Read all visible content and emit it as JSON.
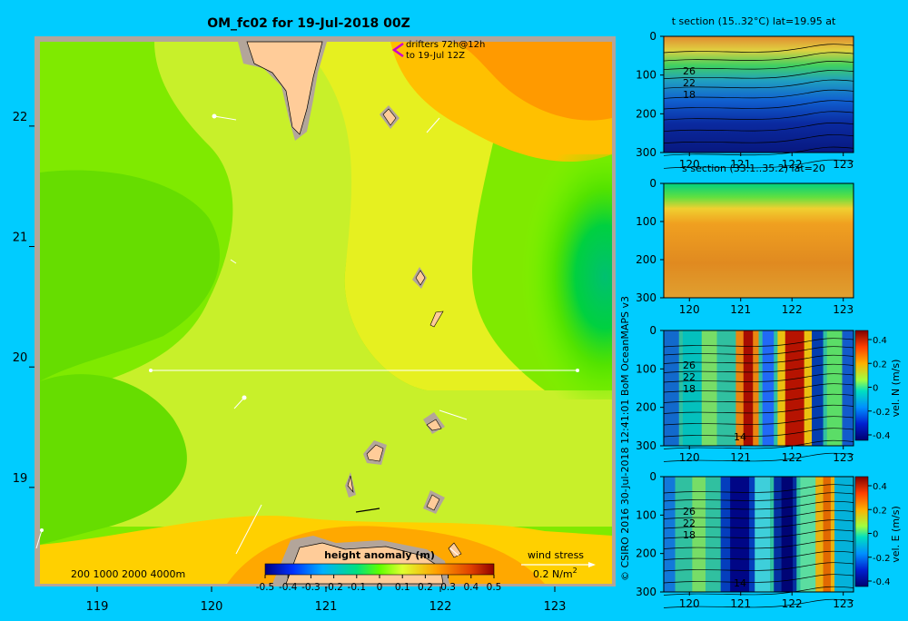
{
  "page": {
    "title": "OM_fc02 for 19-Jul-2018 00Z",
    "credit": "© CSIRO 2016   30-Jul-2018 12:41:01 BoM OceanMAPS v3",
    "colors": {
      "background": "#00ccff",
      "land": "#ffcc99",
      "land_shadow": "#b3a59a"
    }
  },
  "map": {
    "drifters_label_1": "drifters 72h@12h",
    "drifters_label_2": "to 19-Jul 12Z",
    "depth_legend": "200  1000  2000  4000m",
    "colorbar_title": "height anomaly  (m)",
    "colorbar_ticks": [
      "-0.5",
      "-0.4",
      "-0.3",
      "-0.2",
      "-0.1",
      "0",
      "0.1",
      "0.2",
      "0.3",
      "0.4",
      "0.5"
    ],
    "wind_label": "wind stress",
    "wind_scale": "0.2 N/m",
    "wind_scale_exp": "2",
    "x_ticks": [
      "119",
      "120",
      "121",
      "122",
      "123"
    ],
    "y_ticks": [
      "22",
      "21",
      "20",
      "19"
    ]
  },
  "panels": [
    {
      "id": "t",
      "title": "t section (15..32°C) lat=19.95 at",
      "y_ticks": [
        "0",
        "100",
        "200",
        "300"
      ],
      "x_ticks": [
        "120",
        "121",
        "122",
        "123"
      ],
      "contour_labels": [
        "26",
        "22",
        "18"
      ]
    },
    {
      "id": "s",
      "title": "s section (33.1..35.2) lat=20",
      "y_ticks": [
        "0",
        "100",
        "200",
        "300"
      ],
      "x_ticks": [
        "120",
        "121",
        "122",
        "123"
      ],
      "contour_labels": []
    },
    {
      "id": "n",
      "title": "",
      "y_ticks": [
        "0",
        "100",
        "200",
        "300"
      ],
      "x_ticks": [
        "120",
        "121",
        "122",
        "123"
      ],
      "contour_labels": [
        "26",
        "22",
        "18",
        "14"
      ],
      "cbar_label": "vel. N (m/s)",
      "cbar_ticks": [
        "0.4",
        "0.2",
        "0",
        "-0.2",
        "-0.4"
      ]
    },
    {
      "id": "e",
      "title": "",
      "y_ticks": [
        "0",
        "100",
        "200",
        "300"
      ],
      "x_ticks": [
        "120",
        "121",
        "122",
        "123"
      ],
      "contour_labels": [
        "26",
        "22",
        "18",
        "14"
      ],
      "cbar_label": "vel. E (m/s)",
      "cbar_ticks": [
        "0.4",
        "0.2",
        "0",
        "-0.2",
        "-0.4"
      ]
    }
  ],
  "chart_data": [
    {
      "type": "heatmap",
      "title": "OM_fc02 for 19-Jul-2018 00Z",
      "variable": "height anomaly (m)",
      "xlim": [
        118.5,
        123.5
      ],
      "ylim": [
        18.2,
        22.7
      ],
      "clim": [
        -0.5,
        0.5
      ],
      "section_line": {
        "lat": 20,
        "lon": [
          119.5,
          123.1
        ]
      }
    },
    {
      "type": "heatmap",
      "title": "t section (15..32°C) lat=19.95 at",
      "xlim": [
        119.5,
        123.2
      ],
      "ylim": [
        300,
        0
      ],
      "clim": [
        15,
        32
      ]
    },
    {
      "type": "heatmap",
      "title": "s section (33.1..35.2) lat=20",
      "xlim": [
        119.5,
        123.2
      ],
      "ylim": [
        300,
        0
      ],
      "clim": [
        33.1,
        35.2
      ]
    },
    {
      "type": "heatmap",
      "title": "vel. N (m/s)",
      "xlim": [
        119.5,
        123.2
      ],
      "ylim": [
        300,
        0
      ],
      "clim": [
        -0.4,
        0.4
      ]
    },
    {
      "type": "heatmap",
      "title": "vel. E (m/s)",
      "xlim": [
        119.5,
        123.2
      ],
      "ylim": [
        300,
        0
      ],
      "clim": [
        -0.4,
        0.4
      ]
    }
  ]
}
